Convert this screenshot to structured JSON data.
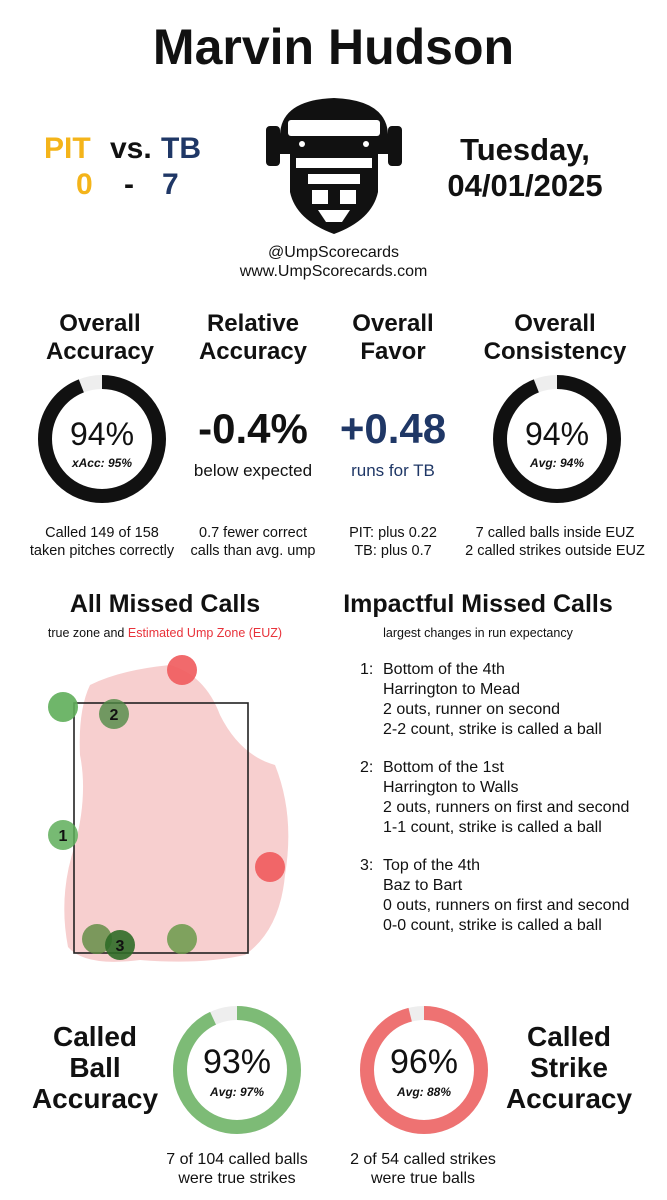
{
  "title": "Marvin Hudson",
  "matchup": {
    "away_team": "PIT",
    "vs": "vs.",
    "home_team": "TB",
    "away_score": "0",
    "dash": "-",
    "home_score": "7",
    "away_color": "#f4b41a",
    "home_color": "#1f3766"
  },
  "date": {
    "day": "Tuesday,",
    "date": "04/01/2025"
  },
  "logo": {
    "icon": "umpire-mask-icon"
  },
  "handles": {
    "twitter": "@UmpScorecards",
    "website": "www.UmpScorecards.com"
  },
  "metrics": {
    "overall_accuracy": {
      "head1": "Overall",
      "head2": "Accuracy",
      "value": "94%",
      "sub": "xAcc: 95%",
      "fraction": 0.94,
      "note1": "Called 149 of 158",
      "note2": "taken pitches correctly"
    },
    "relative_accuracy": {
      "head1": "Relative",
      "head2": "Accuracy",
      "value": "-0.4%",
      "sub": "below expected",
      "note1": "0.7 fewer correct",
      "note2": "calls than avg. ump"
    },
    "overall_favor": {
      "head1": "Overall",
      "head2": "Favor",
      "value": "+0.48",
      "sub": "runs for TB",
      "note1": "PIT: plus 0.22",
      "note2": "TB: plus 0.7"
    },
    "overall_consistency": {
      "head1": "Overall",
      "head2": "Consistency",
      "value": "94%",
      "sub": "Avg: 94%",
      "fraction": 0.94,
      "note1": "7 called balls inside EUZ",
      "note2": "2 called strikes outside EUZ"
    }
  },
  "missed_calls": {
    "title": "All Missed Calls",
    "caption_prefix": "true zone and",
    "caption_highlight": "Estimated Ump Zone (EUZ)",
    "highlight_color": "#e8323a",
    "labels": [
      "1",
      "2",
      "3"
    ]
  },
  "impactful": {
    "title": "Impactful Missed Calls",
    "caption": "largest changes in run expectancy",
    "items": [
      {
        "num": "1:",
        "line1": "Bottom of the 4th",
        "line2": "Harrington to Mead",
        "line3": "2 outs, runner on second",
        "line4": "2-2 count, strike is called a ball"
      },
      {
        "num": "2:",
        "line1": "Bottom of the 1st",
        "line2": "Harrington to Walls",
        "line3": "2 outs, runners on first and second",
        "line4": "1-1 count, strike is called a ball"
      },
      {
        "num": "3:",
        "line1": "Top of the 4th",
        "line2": "Baz to Bart",
        "line3": "0 outs, runners on first and second",
        "line4": "0-0 count, strike is called a ball"
      }
    ]
  },
  "called_ball": {
    "head1": "Called",
    "head2": "Ball",
    "head3": "Accuracy",
    "value": "93%",
    "sub": "Avg: 97%",
    "fraction": 0.93,
    "color": "#7dbb76",
    "note1": "7 of 104 called balls",
    "note2": "were true strikes"
  },
  "called_strike": {
    "head1": "Called",
    "head2": "Strike",
    "head3": "Accuracy",
    "value": "96%",
    "sub": "Avg: 88%",
    "fraction": 0.96,
    "color": "#ee7272",
    "note1": "2 of 54 called strikes",
    "note2": "were true balls"
  }
}
